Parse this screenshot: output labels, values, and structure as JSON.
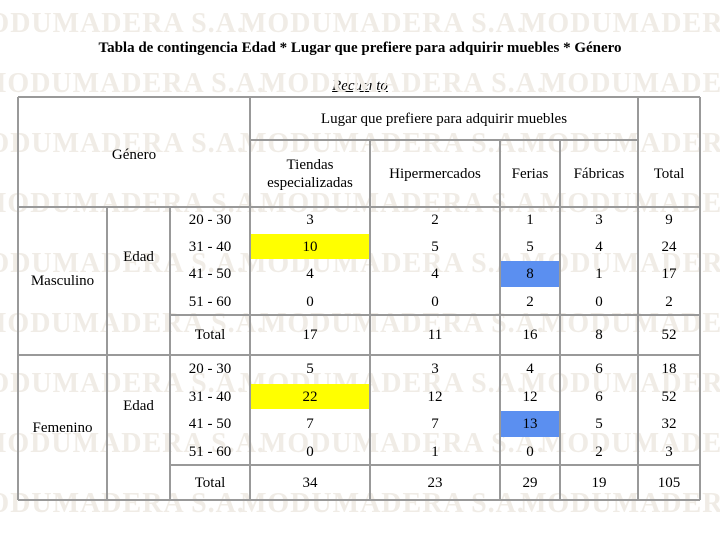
{
  "title": "Tabla de contingencia Edad * Lugar que prefiere para adquirir muebles * Género",
  "subtitle": "Recuento",
  "watermark": "MODUMADERA S.A.",
  "table": {
    "corner": "Género",
    "group_header": "Lugar que prefiere para adquirir muebles",
    "columns": [
      "Tiendas especializadas",
      "Hipermercados",
      "Ferias",
      "Fábricas",
      "Total"
    ],
    "groups": [
      {
        "name": "Masculino",
        "variable": "Edad",
        "rows": [
          {
            "label": "20 - 30",
            "values": [
              3,
              2,
              1,
              3,
              9
            ]
          },
          {
            "label": "31 - 40",
            "values": [
              10,
              5,
              5,
              4,
              24
            ],
            "cell_colors": [
              "#ffff00",
              null,
              null,
              null,
              null
            ]
          },
          {
            "label": "41 - 50",
            "values": [
              4,
              4,
              8,
              1,
              17
            ],
            "cell_colors": [
              null,
              null,
              "#5b8ff0",
              null,
              null
            ]
          },
          {
            "label": "51 - 60",
            "values": [
              0,
              0,
              2,
              0,
              2
            ]
          }
        ],
        "total": {
          "label": "Total",
          "values": [
            17,
            11,
            16,
            8,
            52
          ]
        }
      },
      {
        "name": "Femenino",
        "variable": "Edad",
        "rows": [
          {
            "label": "20 - 30",
            "values": [
              5,
              3,
              4,
              6,
              18
            ]
          },
          {
            "label": "31 - 40",
            "values": [
              22,
              12,
              12,
              6,
              52
            ],
            "cell_colors": [
              "#ffff00",
              null,
              null,
              null,
              null
            ]
          },
          {
            "label": "41 - 50",
            "values": [
              7,
              7,
              13,
              5,
              32
            ],
            "cell_colors": [
              null,
              null,
              "#5b8ff0",
              null,
              null
            ]
          },
          {
            "label": "51 - 60",
            "values": [
              0,
              1,
              0,
              2,
              3
            ]
          }
        ],
        "total": {
          "label": "Total",
          "values": [
            34,
            23,
            29,
            19,
            105
          ]
        }
      }
    ]
  }
}
